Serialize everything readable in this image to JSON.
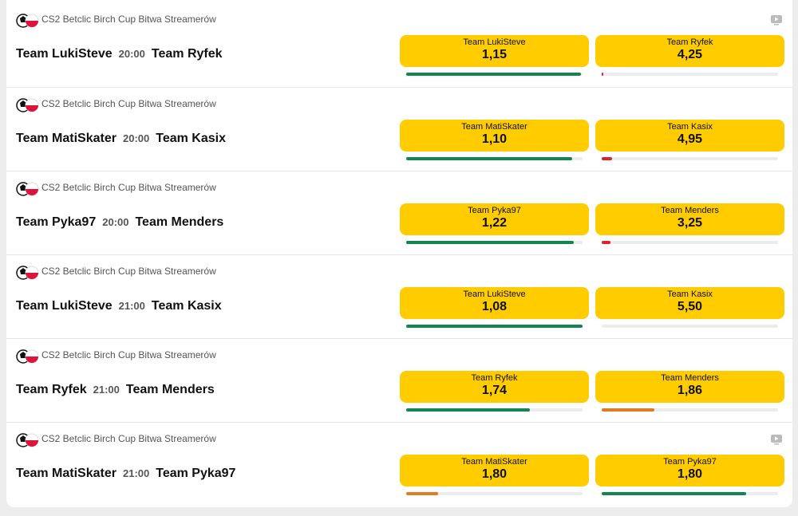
{
  "matches": [
    {
      "league": "CS2 Betclic Birch Cup Bitwa Streamerów",
      "home": "Team LukiSteve",
      "time": "20:00",
      "away": "Team Ryfek",
      "stream": true,
      "odds": [
        {
          "label": "Team LukiSteve",
          "price": "1,15",
          "share": 99,
          "color": "#12864f"
        },
        {
          "label": "Team Ryfek",
          "price": "4,25",
          "share": 1,
          "color": "#e0202a"
        }
      ]
    },
    {
      "league": "CS2 Betclic Birch Cup Bitwa Streamerów",
      "home": "Team MatiSkater",
      "time": "20:00",
      "away": "Team Kasix",
      "stream": false,
      "odds": [
        {
          "label": "Team MatiSkater",
          "price": "1,10",
          "share": 94,
          "color": "#12864f"
        },
        {
          "label": "Team Kasix",
          "price": "4,95",
          "share": 6,
          "color": "#e0202a"
        }
      ]
    },
    {
      "league": "CS2 Betclic Birch Cup Bitwa Streamerów",
      "home": "Team Pyka97",
      "time": "20:00",
      "away": "Team Menders",
      "stream": false,
      "odds": [
        {
          "label": "Team Pyka97",
          "price": "1,22",
          "share": 95,
          "color": "#12864f"
        },
        {
          "label": "Team Menders",
          "price": "3,25",
          "share": 5,
          "color": "#e0202a"
        }
      ]
    },
    {
      "league": "CS2 Betclic Birch Cup Bitwa Streamerów",
      "home": "Team LukiSteve",
      "time": "21:00",
      "away": "Team Kasix",
      "stream": false,
      "odds": [
        {
          "label": "Team LukiSteve",
          "price": "1,08",
          "share": 100,
          "color": "#12864f"
        },
        {
          "label": "Team Kasix",
          "price": "5,50",
          "share": 0,
          "color": "#e0202a"
        }
      ]
    },
    {
      "league": "CS2 Betclic Birch Cup Bitwa Streamerów",
      "home": "Team Ryfek",
      "time": "21:00",
      "away": "Team Menders",
      "stream": false,
      "odds": [
        {
          "label": "Team Ryfek",
          "price": "1,74",
          "share": 70,
          "color": "#12864f"
        },
        {
          "label": "Team Menders",
          "price": "1,86",
          "share": 30,
          "color": "#e07b22"
        }
      ]
    },
    {
      "league": "CS2 Betclic Birch Cup Bitwa Streamerów",
      "home": "Team MatiSkater",
      "time": "21:00",
      "away": "Team Pyka97",
      "stream": true,
      "odds": [
        {
          "label": "Team MatiSkater",
          "price": "1,80",
          "share": 18,
          "color": "#e07b22"
        },
        {
          "label": "Team Pyka97",
          "price": "1,80",
          "share": 82,
          "color": "#12864f"
        }
      ]
    }
  ]
}
